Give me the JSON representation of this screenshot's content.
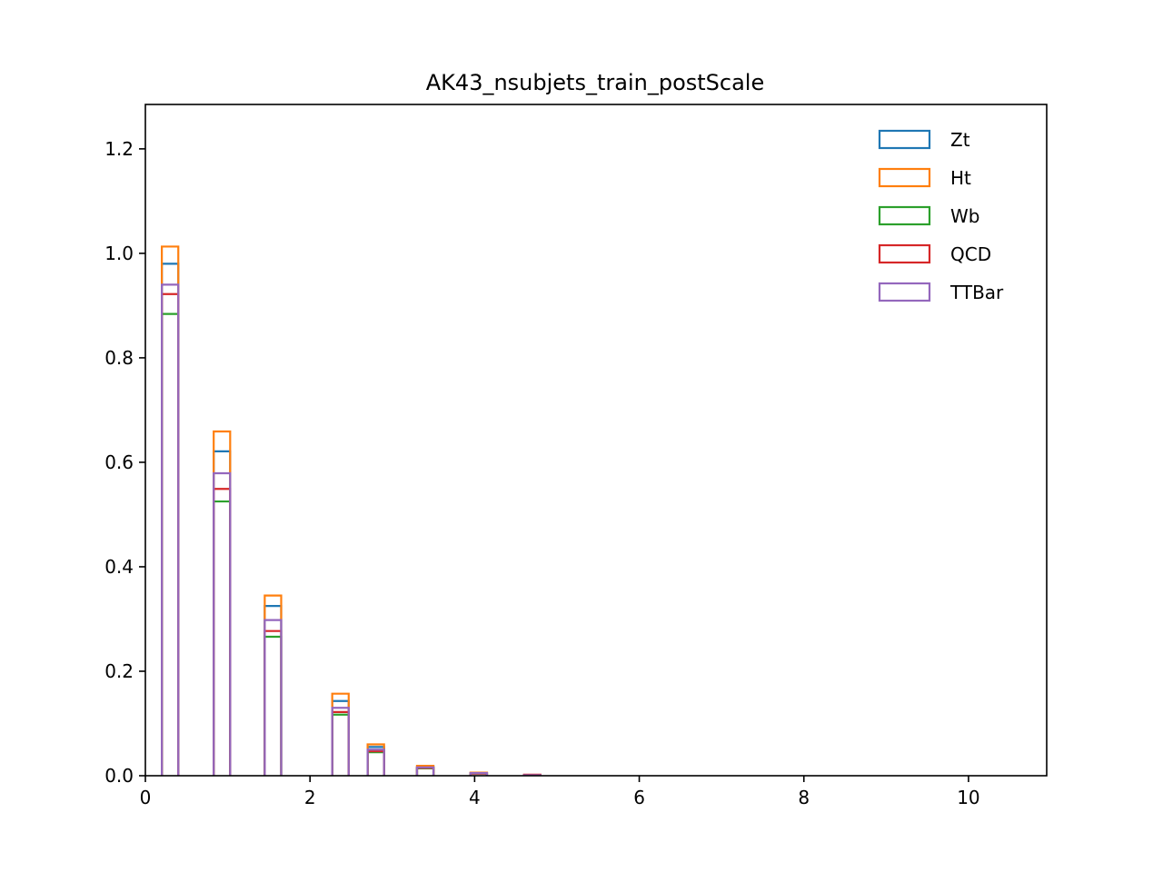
{
  "chart_data": {
    "type": "histogram",
    "title": "AK43_nsubjets_train_postScale",
    "xlabel": "",
    "ylabel": "",
    "xlim": [
      0,
      10.95
    ],
    "ylim": [
      0,
      1.285
    ],
    "xticks": [
      0,
      2,
      4,
      6,
      8,
      10
    ],
    "xtick_labels": [
      "0",
      "2",
      "4",
      "6",
      "8",
      "10"
    ],
    "yticks": [
      0.0,
      0.2,
      0.4,
      0.6,
      0.8,
      1.0,
      1.2
    ],
    "ytick_labels": [
      "0.0",
      "0.2",
      "0.4",
      "0.6",
      "0.8",
      "1.0",
      "1.2"
    ],
    "grid": false,
    "legend_position": "top-right",
    "bins": [
      [
        0.2,
        0.4
      ],
      [
        0.83,
        1.03
      ],
      [
        1.45,
        1.65
      ],
      [
        2.27,
        2.47
      ],
      [
        2.7,
        2.9
      ],
      [
        3.3,
        3.5
      ],
      [
        3.95,
        4.15
      ],
      [
        4.6,
        4.8
      ]
    ],
    "series": [
      {
        "name": "Zt",
        "color": "#1f77b4",
        "values": [
          0.98,
          0.621,
          0.325,
          0.143,
          0.055,
          0.017,
          0.005,
          0.001
        ]
      },
      {
        "name": "Ht",
        "color": "#ff7f0e",
        "values": [
          1.013,
          0.659,
          0.345,
          0.157,
          0.06,
          0.019,
          0.006,
          0.001
        ]
      },
      {
        "name": "Wb",
        "color": "#2ca02c",
        "values": [
          0.884,
          0.525,
          0.266,
          0.117,
          0.045,
          0.014,
          0.004,
          0.001
        ]
      },
      {
        "name": "QCD",
        "color": "#d62728",
        "values": [
          0.922,
          0.549,
          0.277,
          0.122,
          0.047,
          0.015,
          0.004,
          0.002
        ]
      },
      {
        "name": "TTBar",
        "color": "#9467bd",
        "values": [
          0.94,
          0.579,
          0.298,
          0.13,
          0.05,
          0.016,
          0.005,
          0.001
        ]
      }
    ]
  }
}
